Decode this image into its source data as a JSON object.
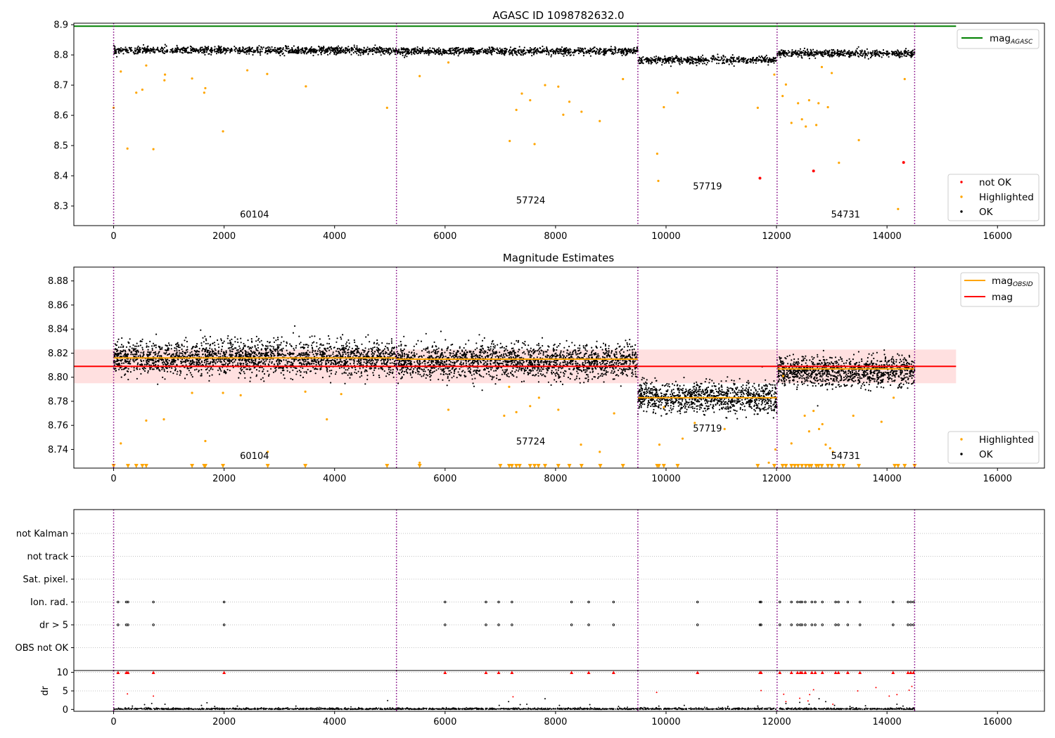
{
  "chart_data": [
    {
      "type": "scatter",
      "title": "AGASC ID 1098782632.0",
      "xlim": [
        -720,
        16850
      ],
      "ylim": [
        8.235,
        8.905
      ],
      "xticks": [
        0,
        2000,
        4000,
        6000,
        8000,
        10000,
        12000,
        14000,
        16000
      ],
      "yticks": [
        8.3,
        8.4,
        8.5,
        8.6,
        8.7,
        8.8,
        8.9
      ],
      "mag_agasc": 8.895,
      "mag_agasc_xrange": [
        -720,
        15250
      ],
      "obs_boundaries": [
        0,
        5120,
        9490,
        12010,
        14500
      ],
      "obs_labels": [
        {
          "text": "60104",
          "x": 2550,
          "y": 8.262
        },
        {
          "text": "57724",
          "x": 7550,
          "y": 8.308
        },
        {
          "text": "57719",
          "x": 10750,
          "y": 8.355
        },
        {
          "text": "54731",
          "x": 13250,
          "y": 8.262
        }
      ],
      "segments": [
        {
          "x0": 0,
          "x1": 5120,
          "center": 8.815,
          "spread": 0.006
        },
        {
          "x0": 5120,
          "x1": 9490,
          "center": 8.812,
          "spread": 0.006
        },
        {
          "x0": 9490,
          "x1": 12010,
          "center": 8.783,
          "spread": 0.006
        },
        {
          "x0": 12010,
          "x1": 14500,
          "center": 8.805,
          "spread": 0.006
        }
      ],
      "highlighted_points": {
        "x": [
          0,
          130,
          250,
          410,
          520,
          590,
          720,
          920,
          930,
          1420,
          1640,
          1660,
          1980,
          2420,
          2780,
          3480,
          4950,
          5540,
          6060,
          7170,
          7290,
          7390,
          7540,
          7620,
          7810,
          8050,
          8140,
          8250,
          8470,
          8800,
          9220,
          9840,
          9860,
          9960,
          10210,
          11660,
          11960,
          12110,
          12170,
          12270,
          12390,
          12460,
          12530,
          12590,
          12720,
          12760,
          12820,
          12930,
          13000,
          13130,
          13490,
          14200,
          14320
        ],
        "y": [
          8.625,
          8.745,
          8.49,
          8.675,
          8.685,
          8.765,
          8.488,
          8.716,
          8.735,
          8.722,
          8.675,
          8.69,
          8.547,
          8.749,
          8.737,
          8.696,
          8.625,
          8.73,
          8.775,
          8.515,
          8.618,
          8.672,
          8.65,
          8.505,
          8.7,
          8.695,
          8.602,
          8.645,
          8.612,
          8.581,
          8.72,
          8.473,
          8.383,
          8.627,
          8.675,
          8.625,
          8.735,
          8.664,
          8.702,
          8.575,
          8.64,
          8.587,
          8.563,
          8.65,
          8.568,
          8.64,
          8.76,
          8.627,
          8.74,
          8.443,
          8.518,
          8.29,
          8.72
        ]
      },
      "not_ok_points": {
        "x": [
          11700,
          12670,
          14300
        ],
        "y": [
          8.392,
          8.416,
          8.444
        ]
      },
      "legend_top": {
        "position": "upper right",
        "entries": [
          {
            "label": "mag",
            "sub": "AGASC",
            "color": "#008000"
          }
        ]
      },
      "legend_bottom": {
        "position": "lower right",
        "entries": [
          {
            "label": "not OK",
            "color": "#ff0000"
          },
          {
            "label": "Highlighted",
            "color": "#ffa500"
          },
          {
            "label": "OK",
            "color": "#000000"
          }
        ]
      }
    },
    {
      "type": "scatter",
      "title": "Magnitude Estimates",
      "xlim": [
        -720,
        16850
      ],
      "ylim": [
        8.7245,
        8.8915
      ],
      "xticks": [
        0,
        2000,
        4000,
        6000,
        8000,
        10000,
        12000,
        14000,
        16000
      ],
      "yticks": [
        8.74,
        8.76,
        8.78,
        8.8,
        8.82,
        8.84,
        8.86,
        8.88
      ],
      "mag": 8.809,
      "mag_band": [
        8.795,
        8.823
      ],
      "mag_xrange": [
        -720,
        15250
      ],
      "obs_boundaries": [
        0,
        5120,
        9490,
        12010,
        14500
      ],
      "obs_labels": [
        {
          "text": "60104",
          "x": 2550,
          "y": 8.732
        },
        {
          "text": "57724",
          "x": 7550,
          "y": 8.744
        },
        {
          "text": "57719",
          "x": 10750,
          "y": 8.755
        },
        {
          "text": "54731",
          "x": 13250,
          "y": 8.732
        }
      ],
      "mag_obsid": [
        {
          "x0": 0,
          "x1": 5120,
          "value": 8.816
        },
        {
          "x0": 5120,
          "x1": 9490,
          "value": 8.815
        },
        {
          "x0": 9490,
          "x1": 12010,
          "value": 8.783
        },
        {
          "x0": 12010,
          "x1": 14500,
          "value": 8.807
        }
      ],
      "segments": [
        {
          "x0": 0,
          "x1": 5120,
          "center": 8.816,
          "spread": 0.007
        },
        {
          "x0": 5120,
          "x1": 9490,
          "center": 8.813,
          "spread": 0.007
        },
        {
          "x0": 9490,
          "x1": 12010,
          "center": 8.783,
          "spread": 0.006
        },
        {
          "x0": 12010,
          "x1": 14500,
          "center": 8.805,
          "spread": 0.006
        }
      ],
      "highlighted_points": {
        "x": [
          130,
          590,
          910,
          1420,
          1660,
          1980,
          2300,
          2790,
          3470,
          3860,
          4120,
          5540,
          6060,
          7070,
          7160,
          7290,
          7540,
          7700,
          8050,
          8460,
          8800,
          9060,
          9880,
          9960,
          10300,
          10520,
          11060,
          11860,
          11980,
          12120,
          12270,
          12510,
          12590,
          12670,
          12770,
          12830,
          12890,
          12970,
          13020,
          13390,
          13900,
          14120
        ],
        "y": [
          8.745,
          8.764,
          8.765,
          8.787,
          8.747,
          8.787,
          8.785,
          8.738,
          8.788,
          8.765,
          8.786,
          8.729,
          8.773,
          8.768,
          8.792,
          8.771,
          8.776,
          8.783,
          8.773,
          8.744,
          8.738,
          8.77,
          8.744,
          8.775,
          8.749,
          8.762,
          8.757,
          8.729,
          8.74,
          8.801,
          8.745,
          8.768,
          8.755,
          8.772,
          8.757,
          8.761,
          8.744,
          8.741,
          8.738,
          8.768,
          8.763,
          8.783
        ]
      },
      "clipped_highlighted_x": [
        0,
        260,
        410,
        520,
        590,
        1420,
        1640,
        1660,
        1980,
        2790,
        3470,
        4950,
        5540,
        7000,
        7160,
        7210,
        7290,
        7350,
        7540,
        7620,
        7690,
        7810,
        8050,
        8250,
        8470,
        8810,
        9220,
        9840,
        9870,
        9960,
        10210,
        11660,
        11960,
        12110,
        12170,
        12270,
        12330,
        12390,
        12460,
        12530,
        12590,
        12630,
        12720,
        12760,
        12820,
        12930,
        13000,
        13130,
        13210,
        13490,
        14140,
        14200,
        14320,
        14500
      ],
      "legend_top": {
        "position": "upper right",
        "entries": [
          {
            "label": "mag",
            "sub": "OBSID",
            "color": "#ffa500"
          },
          {
            "label": "mag",
            "color": "#ff0000"
          }
        ]
      },
      "legend_bottom": {
        "position": "lower right",
        "entries": [
          {
            "label": "Highlighted",
            "color": "#ffa500"
          },
          {
            "label": "OK",
            "color": "#000000"
          }
        ]
      }
    },
    {
      "type": "scatter",
      "title": "",
      "xlim": [
        -720,
        16850
      ],
      "xticks": [
        0,
        2000,
        4000,
        6000,
        8000,
        10000,
        12000,
        14000,
        16000
      ],
      "categories": [
        "not Kalman",
        "not track",
        "Sat. pixel.",
        "Ion. rad.",
        "dr > 5",
        "OBS not OK"
      ],
      "obs_boundaries": [
        0,
        5120,
        9490,
        12010,
        14500
      ],
      "flag_events_x": [
        80,
        230,
        260,
        720,
        2000,
        6000,
        6740,
        6970,
        7210,
        8290,
        8600,
        9050,
        10570,
        11700,
        11720,
        12060,
        12270,
        12380,
        12430,
        12460,
        12520,
        12640,
        12700,
        12830,
        13070,
        13120,
        13290,
        13510,
        14110,
        14380,
        14430,
        14480
      ],
      "dr_panel": {
        "ylim": [
          -0.5,
          10.5
        ],
        "yticks": [
          0,
          5,
          10
        ],
        "ylabel": "dr",
        "clipped_x": [
          80,
          230,
          260,
          720,
          2000,
          6000,
          6740,
          6970,
          7210,
          8290,
          8600,
          9050,
          10570,
          11700,
          11720,
          12060,
          12270,
          12380,
          12430,
          12460,
          12520,
          12640,
          12700,
          12830,
          13070,
          13120,
          13290,
          13510,
          14110,
          14380,
          14430,
          14480
        ],
        "red_points": {
          "x": [
            250,
            720,
            7230,
            9830,
            11720,
            12130,
            12170,
            12420,
            12570,
            12600,
            12670,
            13020,
            13470,
            13800,
            14040,
            14180,
            14400,
            14450
          ],
          "y": [
            4.2,
            3.6,
            3.4,
            4.6,
            5.1,
            4.1,
            2.1,
            3.0,
            2.3,
            4.0,
            5.3,
            1.4,
            5.0,
            5.9,
            3.6,
            4.0,
            5.2,
            6.2
          ]
        },
        "outlier_points": {
          "x": [
            340,
            560,
            690,
            930,
            1590,
            1690,
            1830,
            2240,
            3300,
            4960,
            6980,
            7150,
            7360,
            7480,
            7810,
            8070,
            8620,
            9140,
            9870,
            10330,
            11120,
            11660,
            12170,
            12420,
            12590,
            12770,
            12890,
            13050,
            13330,
            13610,
            14180,
            14290
          ],
          "y": [
            0.9,
            1.3,
            1.6,
            1.4,
            1.1,
            1.8,
            0.8,
            0.9,
            0.9,
            2.4,
            1.1,
            2.1,
            1.3,
            1.4,
            2.9,
            1.1,
            1.3,
            0.8,
            0.9,
            1.1,
            0.8,
            0.9,
            1.6,
            1.9,
            1.4,
            2.9,
            2.1,
            1.1,
            0.8,
            1.0,
            1.4,
            0.9
          ]
        }
      }
    }
  ]
}
